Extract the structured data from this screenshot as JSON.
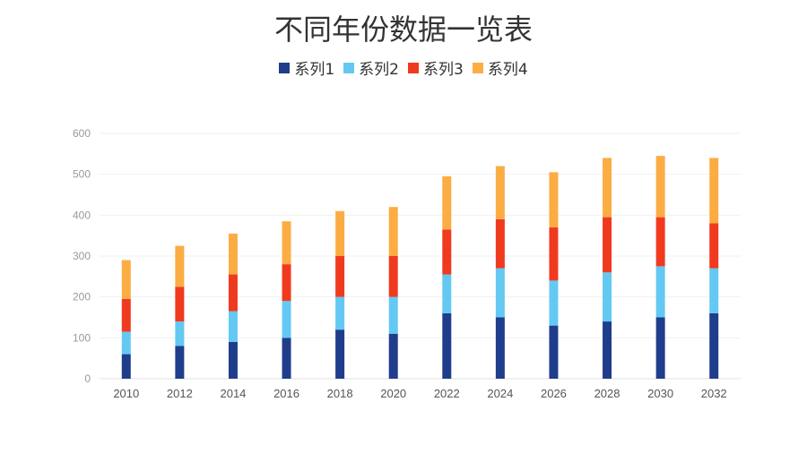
{
  "chart_data": {
    "type": "bar",
    "stacked": true,
    "title": "不同年份数据一览表",
    "xlabel": "",
    "ylabel": "",
    "ylim": [
      0,
      600
    ],
    "yticks": [
      0,
      100,
      200,
      300,
      400,
      500,
      600
    ],
    "grid": true,
    "legend_position": "top",
    "categories": [
      "2010",
      "2012",
      "2014",
      "2016",
      "2018",
      "2020",
      "2022",
      "2024",
      "2026",
      "2028",
      "2030",
      "2032"
    ],
    "series": [
      {
        "name": "系列1",
        "color": "#203d8c",
        "values": [
          60,
          80,
          90,
          100,
          120,
          110,
          160,
          150,
          130,
          140,
          150,
          160
        ]
      },
      {
        "name": "系列2",
        "color": "#63c9f2",
        "values": [
          55,
          60,
          75,
          90,
          80,
          90,
          95,
          120,
          110,
          120,
          125,
          110
        ]
      },
      {
        "name": "系列3",
        "color": "#f03a1f",
        "values": [
          80,
          85,
          90,
          90,
          100,
          100,
          110,
          120,
          130,
          135,
          120,
          110
        ]
      },
      {
        "name": "系列4",
        "color": "#fbad44",
        "values": [
          95,
          100,
          100,
          105,
          110,
          120,
          130,
          130,
          135,
          145,
          150,
          160
        ]
      }
    ]
  }
}
